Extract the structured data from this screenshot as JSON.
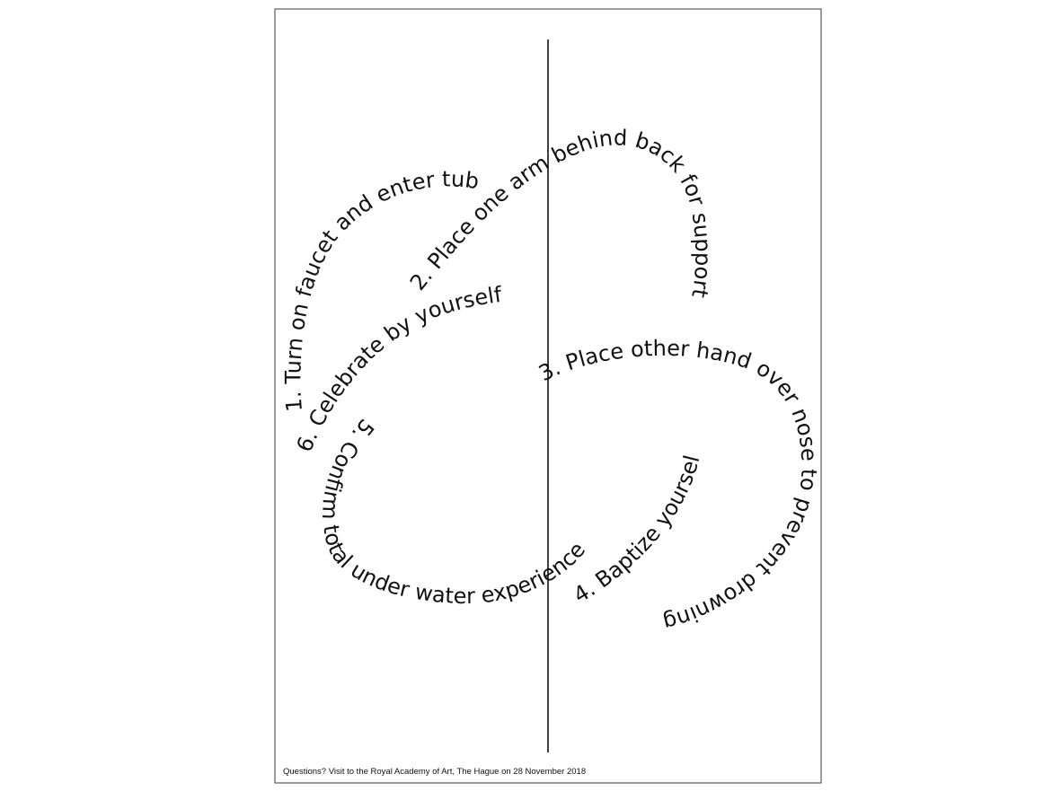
{
  "poster": {
    "instructions": [
      "1. Turn on faucet and enter tub",
      "2. Place one arm behind back for support",
      "3. Place other hand over nose to prevent drowning",
      "4. Baptize yourself",
      "5. Confirm total under water experience",
      "6. Celebrate by yourself"
    ],
    "footer": "Questions? Visit to the Royal Academy of Art, The Hague on 28 November 2018"
  },
  "colors": {
    "ink": "#111111",
    "frame": "#5a5a5a",
    "paper": "#ffffff"
  }
}
